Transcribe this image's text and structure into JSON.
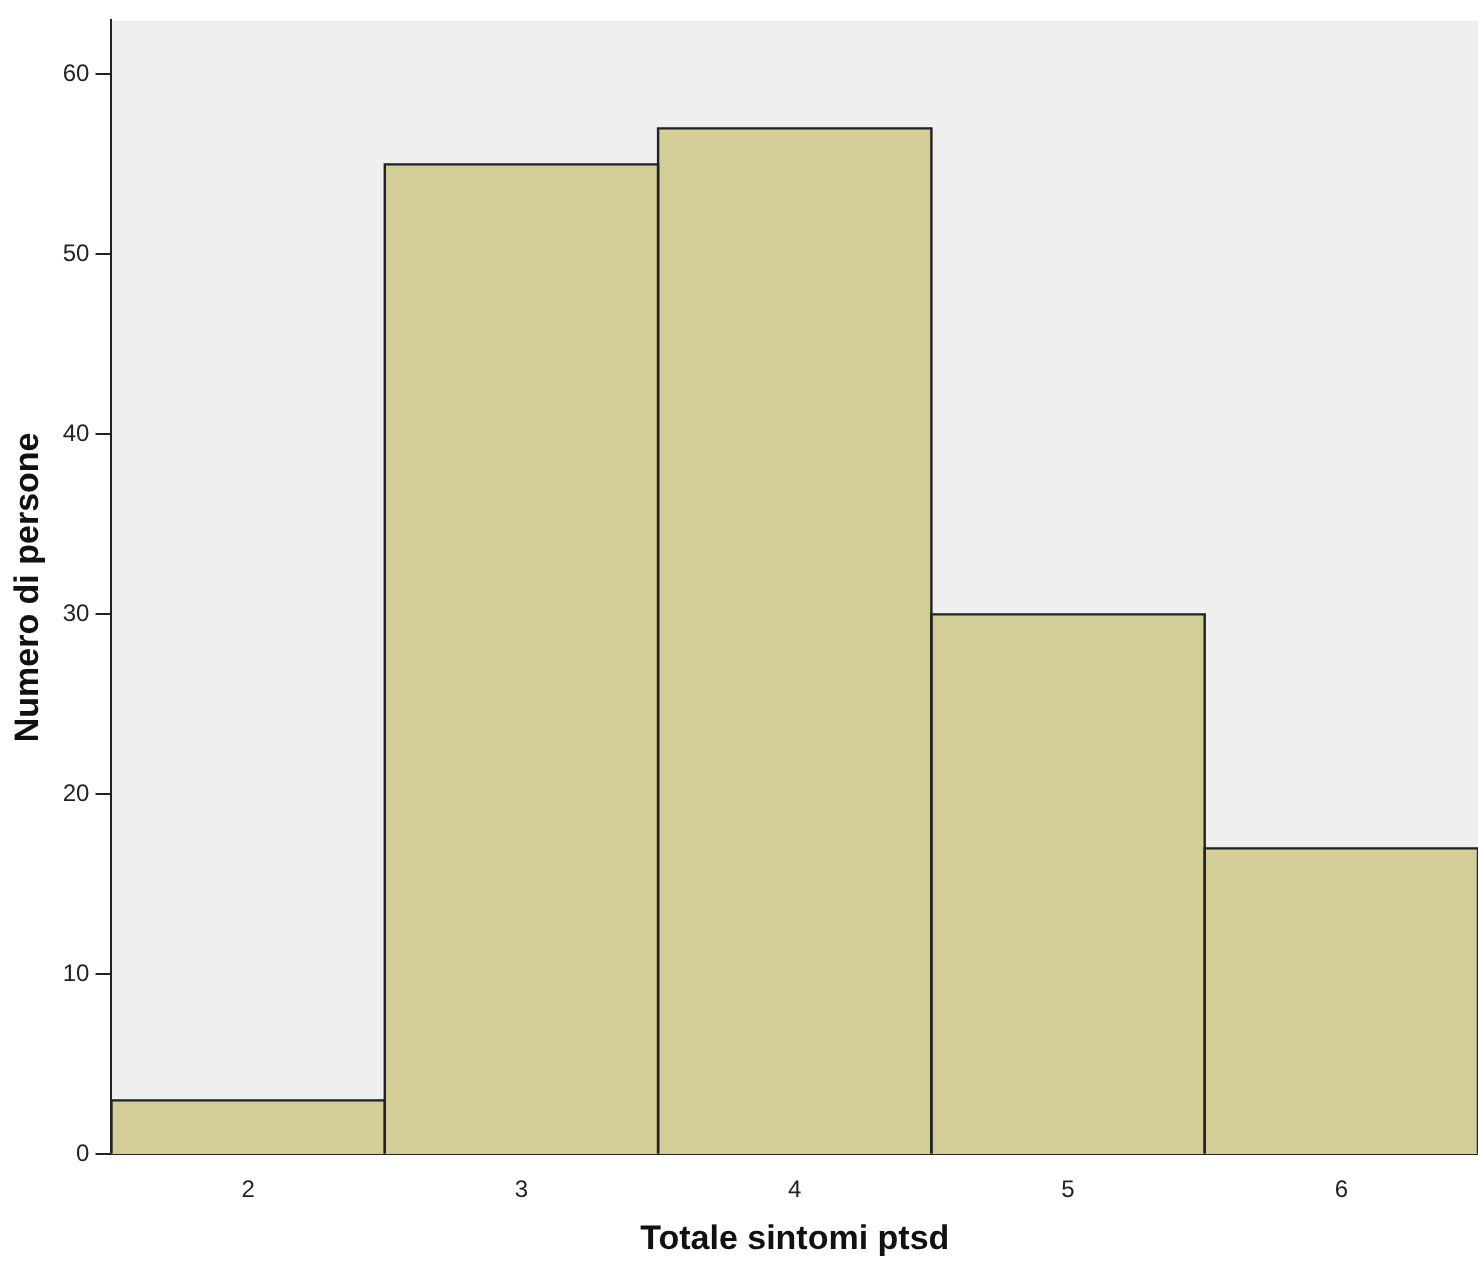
{
  "chart_data": {
    "type": "histogram",
    "xlabel": "Totale sintomi ptsd",
    "ylabel": "Numero di persone",
    "bins": [
      1.5,
      2.5,
      3.5,
      4.5,
      5.5,
      6.5
    ],
    "values": [
      3,
      55,
      57,
      30,
      17
    ],
    "color": "#d3cd98",
    "xlim": [
      1.5,
      6.5
    ],
    "xticks": [
      2,
      3,
      4,
      5,
      6
    ],
    "ylim": [
      0,
      63
    ],
    "yticks": [
      0,
      10,
      20,
      30,
      40,
      50,
      60
    ],
    "grid": false,
    "legend": false
  }
}
